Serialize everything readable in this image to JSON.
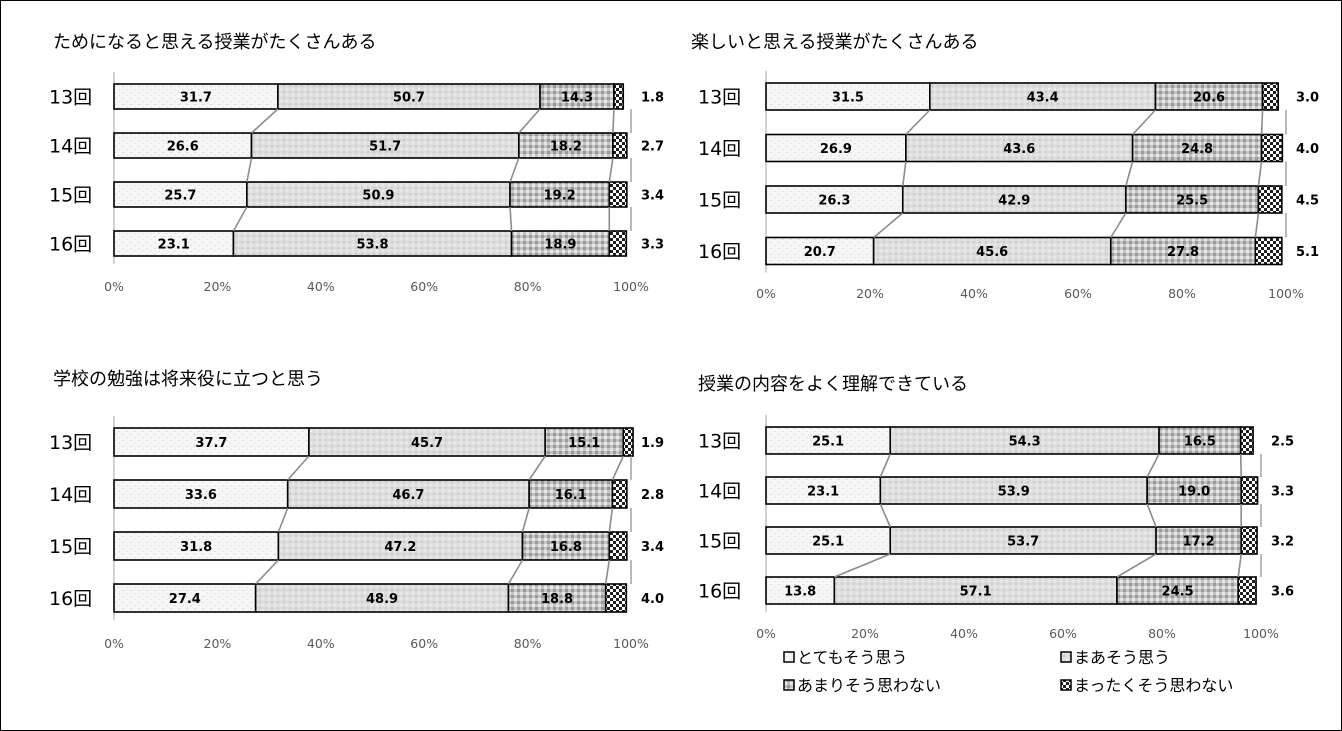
{
  "chart_data": [
    {
      "type": "bar",
      "stacked": true,
      "orientation": "horizontal",
      "percent": true,
      "title": "ためになると思える授業がたくさんある",
      "categories": [
        "13回",
        "14回",
        "15回",
        "16回"
      ],
      "series": [
        {
          "values": [
            31.7,
            26.6,
            25.7,
            23.1
          ]
        },
        {
          "values": [
            50.7,
            51.7,
            50.9,
            53.8
          ]
        },
        {
          "values": [
            14.3,
            18.2,
            19.2,
            18.9
          ]
        },
        {
          "values": [
            1.8,
            2.7,
            3.4,
            3.3
          ]
        }
      ],
      "xticks": [
        "0%",
        "20%",
        "40%",
        "60%",
        "80%",
        "100%"
      ],
      "xlim": [
        0,
        100
      ]
    },
    {
      "type": "bar",
      "stacked": true,
      "orientation": "horizontal",
      "percent": true,
      "title": "楽しいと思える授業がたくさんある",
      "categories": [
        "13回",
        "14回",
        "15回",
        "16回"
      ],
      "series": [
        {
          "values": [
            31.5,
            26.9,
            26.3,
            20.7
          ]
        },
        {
          "values": [
            43.4,
            43.6,
            42.9,
            45.6
          ]
        },
        {
          "values": [
            20.6,
            24.8,
            25.5,
            27.8
          ]
        },
        {
          "values": [
            3.0,
            4.0,
            4.5,
            5.1
          ]
        }
      ],
      "xticks": [
        "0%",
        "20%",
        "40%",
        "60%",
        "80%",
        "100%"
      ],
      "xlim": [
        0,
        100
      ]
    },
    {
      "type": "bar",
      "stacked": true,
      "orientation": "horizontal",
      "percent": true,
      "title": "学校の勉強は将来役に立つと思う",
      "categories": [
        "13回",
        "14回",
        "15回",
        "16回"
      ],
      "series": [
        {
          "values": [
            37.7,
            33.6,
            31.8,
            27.4
          ]
        },
        {
          "values": [
            45.7,
            46.7,
            47.2,
            48.9
          ]
        },
        {
          "values": [
            15.1,
            16.1,
            16.8,
            18.8
          ]
        },
        {
          "values": [
            1.9,
            2.8,
            3.4,
            4.0
          ]
        }
      ],
      "xticks": [
        "0%",
        "20%",
        "40%",
        "60%",
        "80%",
        "100%"
      ],
      "xlim": [
        0,
        100
      ]
    },
    {
      "type": "bar",
      "stacked": true,
      "orientation": "horizontal",
      "percent": true,
      "title": "授業の内容をよく理解できている",
      "categories": [
        "13回",
        "14回",
        "15回",
        "16回"
      ],
      "series": [
        {
          "values": [
            25.1,
            23.1,
            25.1,
            13.8
          ]
        },
        {
          "values": [
            54.3,
            53.9,
            53.7,
            57.1
          ]
        },
        {
          "values": [
            16.5,
            19.0,
            17.2,
            24.5
          ]
        },
        {
          "values": [
            2.5,
            3.3,
            3.2,
            3.6
          ]
        }
      ],
      "xticks": [
        "0%",
        "20%",
        "40%",
        "60%",
        "80%",
        "100%"
      ],
      "xlim": [
        0,
        100
      ]
    }
  ],
  "legend": {
    "placement": "bottom-right",
    "items": [
      "とてもそう思う",
      "まあそう思う",
      "あまりそう思わない",
      "まったくそう思わない"
    ]
  },
  "colors": {
    "s1": "#f4f4f4",
    "s2": "#dedede",
    "s3": "#c2c2c2",
    "s4": "#ececec",
    "bar_border": "#000000",
    "axis_line": "#a6a6a6",
    "connector": "#8c8c8c"
  }
}
